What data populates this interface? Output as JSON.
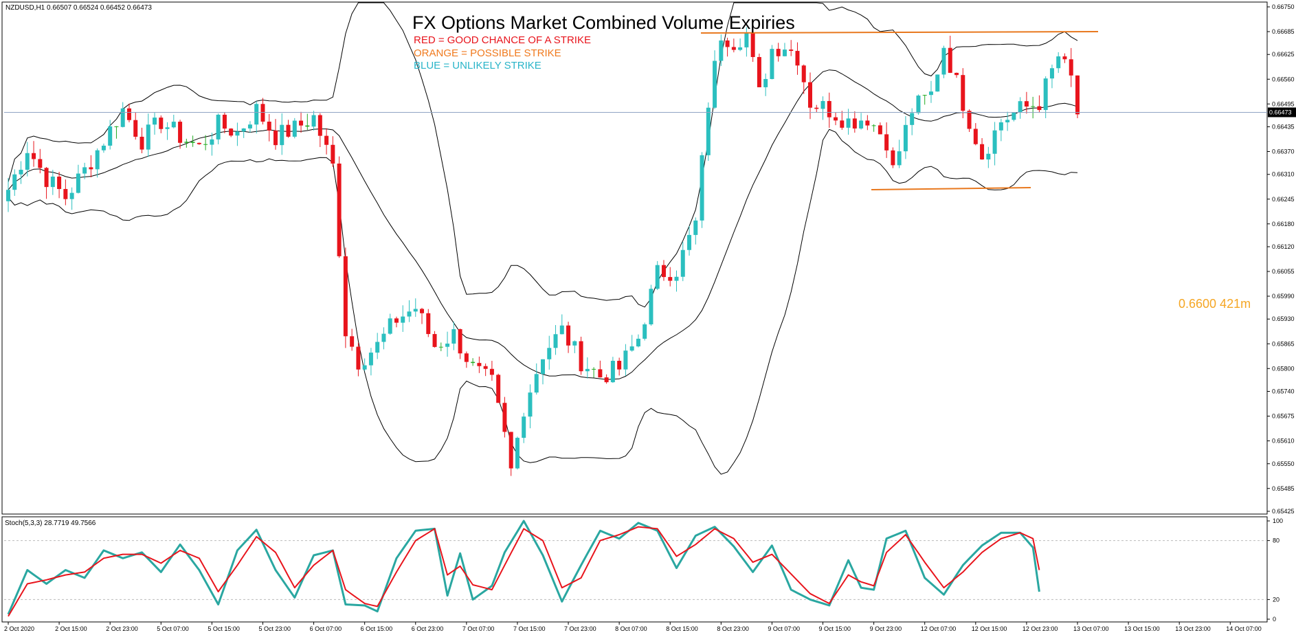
{
  "header": {
    "symbol_info": "NZDUSD,H1  0.66507 0.66524 0.66452 0.66473",
    "stoch_label": "Stoch(5,3,3) 28.7719 49.7566"
  },
  "title": {
    "main": "FX Options Market Combined Volume Expiries",
    "legend_red": "RED = GOOD CHANCE OF A STRIKE",
    "legend_orange": "ORANGE = POSSIBLE STRIKE",
    "legend_blue": "BLUE = UNLIKELY STRIKE"
  },
  "annotation": {
    "expiry_label": "0.6600 421m",
    "expiry_level": 0.66
  },
  "colors": {
    "bull": "#2bbfbf",
    "bear": "#e8141c",
    "doji": "#22aa22",
    "orange": "#f08c1e",
    "red_text": "#e8141c",
    "blue_text": "#28b4c8",
    "bands": "#000000",
    "current_line": "#8fa4c3",
    "stoch_main": "#2aa7a1",
    "stoch_signal": "#e8141c"
  },
  "chart_data": {
    "type": "candlestick",
    "price_axis": {
      "ylim": [
        0.65425,
        0.6675
      ],
      "ticks": [
        "0.66750",
        "0.66685",
        "0.66625",
        "0.66560",
        "0.66495",
        "0.66435",
        "0.66370",
        "0.66310",
        "0.66245",
        "0.66180",
        "0.66120",
        "0.66055",
        "0.65990",
        "0.65930",
        "0.65865",
        "0.65800",
        "0.65740",
        "0.65675",
        "0.65610",
        "0.65550",
        "0.65485",
        "0.65425"
      ],
      "current_price": "0.66473"
    },
    "time_axis": {
      "labels": [
        "2 Oct 2020",
        "2 Oct 15:00",
        "2 Oct 23:00",
        "5 Oct 07:00",
        "5 Oct 15:00",
        "5 Oct 23:00",
        "6 Oct 07:00",
        "6 Oct 15:00",
        "6 Oct 23:00",
        "7 Oct 07:00",
        "7 Oct 15:00",
        "7 Oct 23:00",
        "8 Oct 07:00",
        "8 Oct 15:00",
        "8 Oct 23:00",
        "9 Oct 07:00",
        "9 Oct 15:00",
        "9 Oct 23:00",
        "12 Oct 07:00",
        "12 Oct 15:00",
        "12 Oct 23:00",
        "13 Oct 07:00",
        "13 Oct 15:00",
        "13 Oct 23:00",
        "14 Oct 07:00"
      ]
    },
    "close_path": [
      [
        0,
        0.6627
      ],
      [
        3,
        0.6638
      ],
      [
        6,
        0.663
      ],
      [
        9,
        0.6625
      ],
      [
        12,
        0.6632
      ],
      [
        15,
        0.664
      ],
      [
        18,
        0.6648
      ],
      [
        21,
        0.664
      ],
      [
        24,
        0.6645
      ],
      [
        27,
        0.6641
      ],
      [
        30,
        0.6638
      ],
      [
        33,
        0.6644
      ],
      [
        36,
        0.6642
      ],
      [
        39,
        0.6648
      ],
      [
        42,
        0.6641
      ],
      [
        45,
        0.6643
      ],
      [
        48,
        0.6646
      ],
      [
        51,
        0.6633
      ],
      [
        53,
        0.659
      ],
      [
        55,
        0.6582
      ],
      [
        58,
        0.6586
      ],
      [
        61,
        0.6593
      ],
      [
        64,
        0.6596
      ],
      [
        67,
        0.6586
      ],
      [
        70,
        0.6589
      ],
      [
        73,
        0.658
      ],
      [
        76,
        0.6576
      ],
      [
        78,
        0.6562
      ],
      [
        79,
        0.6553
      ],
      [
        81,
        0.657
      ],
      [
        84,
        0.6584
      ],
      [
        87,
        0.659
      ],
      [
        90,
        0.6582
      ],
      [
        93,
        0.6578
      ],
      [
        96,
        0.658
      ],
      [
        99,
        0.6588
      ],
      [
        102,
        0.6605
      ],
      [
        105,
        0.6606
      ],
      [
        108,
        0.6618
      ],
      [
        110,
        0.665
      ],
      [
        112,
        0.6668
      ],
      [
        114,
        0.6666
      ],
      [
        116,
        0.6668
      ],
      [
        118,
        0.6652
      ],
      [
        120,
        0.6664
      ],
      [
        122,
        0.6665
      ],
      [
        124,
        0.6662
      ],
      [
        126,
        0.665
      ],
      [
        129,
        0.6648
      ],
      [
        132,
        0.6645
      ],
      [
        135,
        0.6646
      ],
      [
        138,
        0.664
      ],
      [
        139,
        0.6632
      ],
      [
        142,
        0.6648
      ],
      [
        145,
        0.6652
      ],
      [
        147,
        0.6665
      ],
      [
        150,
        0.665
      ],
      [
        153,
        0.6636
      ],
      [
        156,
        0.6645
      ],
      [
        159,
        0.6648
      ],
      [
        162,
        0.665
      ],
      [
        165,
        0.6662
      ],
      [
        167,
        0.6656
      ],
      [
        168,
        0.6647
      ]
    ],
    "stochastic": {
      "ylim": [
        0,
        100
      ],
      "levels": [
        20,
        80
      ],
      "tick_labels": [
        "100",
        "80",
        "20",
        "0"
      ],
      "k_path": [
        [
          0,
          5
        ],
        [
          3,
          50
        ],
        [
          6,
          36
        ],
        [
          9,
          50
        ],
        [
          12,
          42
        ],
        [
          15,
          70
        ],
        [
          18,
          62
        ],
        [
          21,
          68
        ],
        [
          24,
          48
        ],
        [
          27,
          76
        ],
        [
          30,
          50
        ],
        [
          33,
          15
        ],
        [
          36,
          70
        ],
        [
          39,
          91
        ],
        [
          42,
          50
        ],
        [
          45,
          22
        ],
        [
          48,
          65
        ],
        [
          51,
          70
        ],
        [
          53,
          15
        ],
        [
          56,
          14
        ],
        [
          58,
          8
        ],
        [
          61,
          62
        ],
        [
          64,
          90
        ],
        [
          67,
          92
        ],
        [
          69,
          24
        ],
        [
          71,
          67
        ],
        [
          73,
          20
        ],
        [
          76,
          34
        ],
        [
          78,
          68
        ],
        [
          81,
          100
        ],
        [
          84,
          65
        ],
        [
          87,
          18
        ],
        [
          90,
          55
        ],
        [
          93,
          90
        ],
        [
          96,
          82
        ],
        [
          99,
          98
        ],
        [
          102,
          90
        ],
        [
          105,
          52
        ],
        [
          108,
          85
        ],
        [
          111,
          94
        ],
        [
          114,
          74
        ],
        [
          117,
          48
        ],
        [
          120,
          75
        ],
        [
          123,
          30
        ],
        [
          126,
          20
        ],
        [
          129,
          14
        ],
        [
          132,
          60
        ],
        [
          134,
          32
        ],
        [
          136,
          30
        ],
        [
          138,
          82
        ],
        [
          141,
          90
        ],
        [
          144,
          42
        ],
        [
          147,
          25
        ],
        [
          150,
          55
        ],
        [
          153,
          75
        ],
        [
          156,
          88
        ],
        [
          159,
          88
        ],
        [
          161,
          73
        ],
        [
          162,
          28
        ]
      ],
      "d_path": [
        [
          0,
          3
        ],
        [
          3,
          36
        ],
        [
          6,
          40
        ],
        [
          9,
          45
        ],
        [
          12,
          48
        ],
        [
          15,
          62
        ],
        [
          18,
          66
        ],
        [
          21,
          66
        ],
        [
          24,
          57
        ],
        [
          27,
          70
        ],
        [
          30,
          62
        ],
        [
          33,
          28
        ],
        [
          36,
          55
        ],
        [
          39,
          84
        ],
        [
          42,
          68
        ],
        [
          45,
          32
        ],
        [
          48,
          55
        ],
        [
          51,
          70
        ],
        [
          53,
          30
        ],
        [
          56,
          16
        ],
        [
          58,
          13
        ],
        [
          61,
          48
        ],
        [
          64,
          80
        ],
        [
          67,
          92
        ],
        [
          69,
          45
        ],
        [
          71,
          54
        ],
        [
          73,
          35
        ],
        [
          76,
          30
        ],
        [
          78,
          55
        ],
        [
          81,
          92
        ],
        [
          84,
          80
        ],
        [
          87,
          32
        ],
        [
          90,
          42
        ],
        [
          93,
          80
        ],
        [
          96,
          86
        ],
        [
          99,
          94
        ],
        [
          102,
          92
        ],
        [
          105,
          64
        ],
        [
          108,
          76
        ],
        [
          111,
          92
        ],
        [
          114,
          82
        ],
        [
          117,
          58
        ],
        [
          120,
          66
        ],
        [
          123,
          46
        ],
        [
          126,
          26
        ],
        [
          129,
          16
        ],
        [
          132,
          45
        ],
        [
          134,
          38
        ],
        [
          136,
          34
        ],
        [
          138,
          68
        ],
        [
          141,
          86
        ],
        [
          144,
          58
        ],
        [
          147,
          32
        ],
        [
          150,
          48
        ],
        [
          153,
          68
        ],
        [
          156,
          82
        ],
        [
          159,
          88
        ],
        [
          161,
          82
        ],
        [
          162,
          50
        ]
      ]
    }
  }
}
